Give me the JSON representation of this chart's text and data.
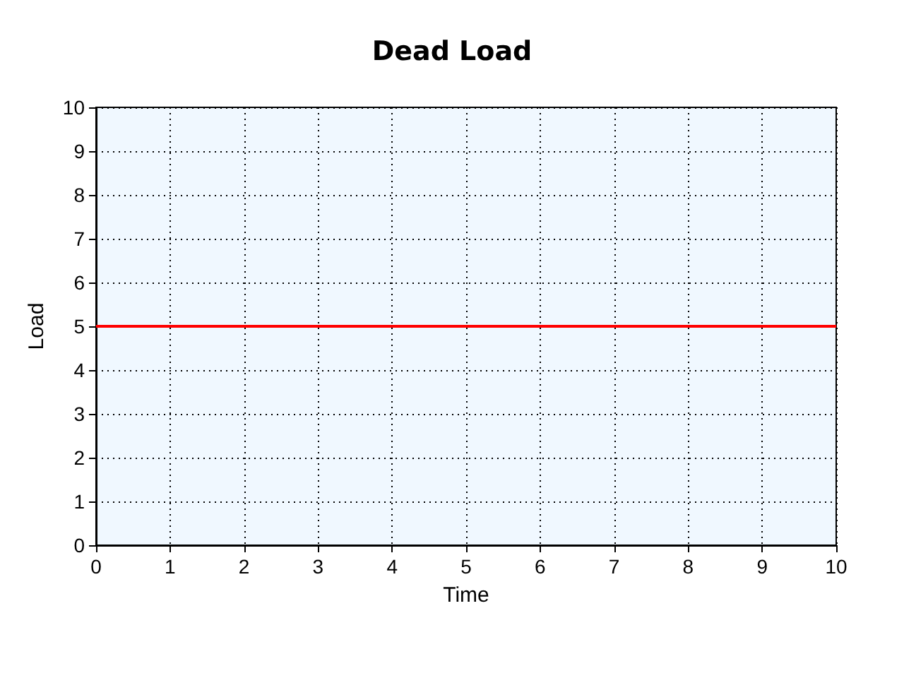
{
  "chart_data": {
    "type": "line",
    "title": "Dead Load",
    "xlabel": "Time",
    "ylabel": "Load",
    "x": [
      0,
      10
    ],
    "series": [
      {
        "color": "#ff0000",
        "values": [
          5,
          5
        ]
      }
    ],
    "xlim": [
      0,
      10
    ],
    "xticks": [
      0,
      1,
      2,
      3,
      4,
      5,
      6,
      7,
      8,
      9,
      10
    ],
    "ylim": [
      0,
      10
    ],
    "yticks": [
      0,
      1,
      2,
      3,
      4,
      5,
      6,
      7,
      8,
      9,
      10
    ],
    "grid": true,
    "marker": "none",
    "line_style": "solid"
  }
}
